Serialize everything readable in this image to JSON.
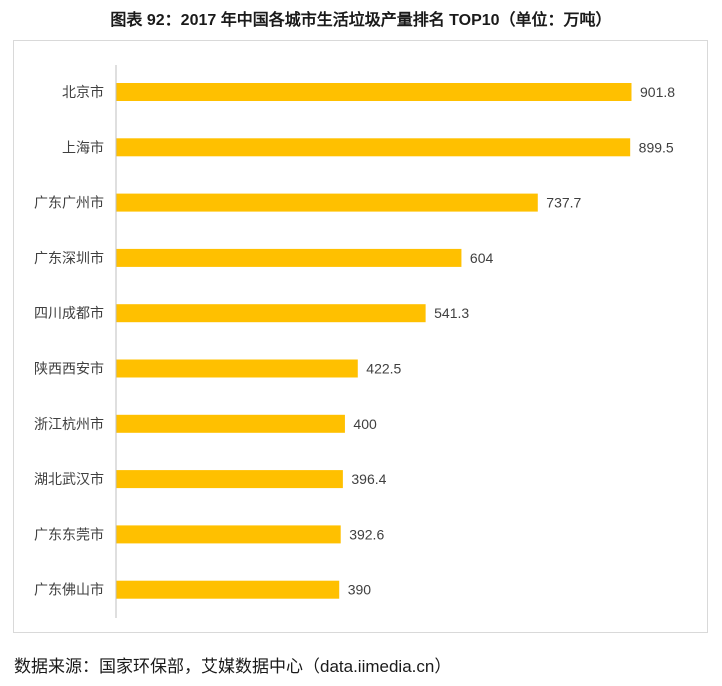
{
  "figure": {
    "title": "图表 92：2017 年中国各城市生活垃圾产量排名 TOP10（单位：万吨）",
    "source": "数据来源：国家环保部，艾媒数据中心（data.iimedia.cn）"
  },
  "chart_data": {
    "type": "bar",
    "orientation": "horizontal",
    "categories": [
      "北京市",
      "上海市",
      "广东广州市",
      "广东深圳市",
      "四川成都市",
      "陕西西安市",
      "浙江杭州市",
      "湖北武汉市",
      "广东东莞市",
      "广东佛山市"
    ],
    "values": [
      901.8,
      899.5,
      737.7,
      604,
      541.3,
      422.5,
      400,
      396.4,
      392.6,
      390
    ],
    "value_labels": [
      "901.8",
      "899.5",
      "737.7",
      "604",
      "541.3",
      "422.5",
      "400",
      "396.4",
      "392.6",
      "390"
    ],
    "bar_color": "#FFC000",
    "xlim": [
      0,
      1000
    ],
    "grid": false,
    "legend": "none"
  }
}
